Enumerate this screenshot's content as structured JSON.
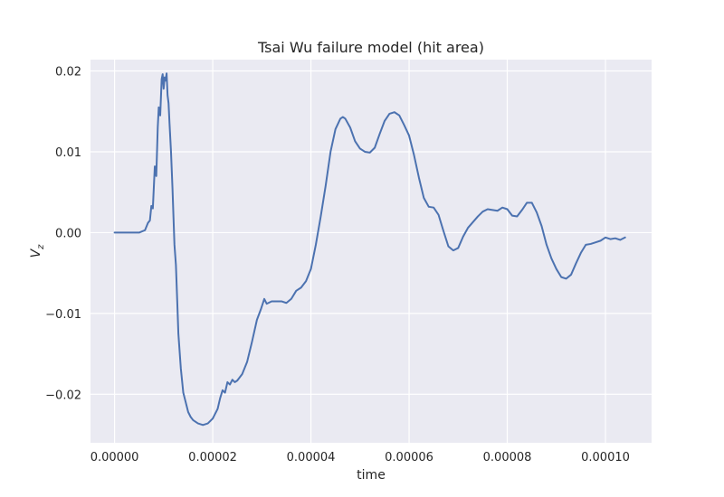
{
  "chart_data": {
    "type": "line",
    "title": "Tsai Wu failure model (hit area)",
    "xlabel": "time",
    "ylabel": "V",
    "ylabel_subscript": "z",
    "xlim": [
      -4.9e-06,
      0.0001094
    ],
    "ylim": [
      -0.026,
      0.0214
    ],
    "xticks": [
      0.0,
      2e-05,
      4e-05,
      6e-05,
      8e-05,
      0.0001
    ],
    "xtick_labels": [
      "0.00000",
      "0.00002",
      "0.00004",
      "0.00006",
      "0.00008",
      "0.00010"
    ],
    "yticks": [
      0.02,
      0.01,
      0.0,
      -0.01,
      -0.02
    ],
    "ytick_labels": [
      "0.02",
      "0.01",
      "0.00",
      "−0.01",
      "−0.02"
    ],
    "grid": true,
    "colors": {
      "line": "#4c72b0",
      "axes_bg": "#eaeaf2",
      "grid": "#ffffff",
      "text": "#262626"
    },
    "series": [
      {
        "name": "Vz",
        "x": [
          0.0,
          2e-06,
          4e-06,
          5e-06,
          6.2e-06,
          6.8e-06,
          7.2e-06,
          7.5e-06,
          7.8e-06,
          8.2e-06,
          8.5e-06,
          8.8e-06,
          9e-06,
          9.3e-06,
          9.6e-06,
          9.8e-06,
          1e-05,
          1.02e-05,
          1.04e-05,
          1.06e-05,
          1.08e-05,
          1.1e-05,
          1.12e-05,
          1.15e-05,
          1.18e-05,
          1.22e-05,
          1.25e-05,
          1.28e-05,
          1.3e-05,
          1.35e-05,
          1.4e-05,
          1.45e-05,
          1.5e-05,
          1.55e-05,
          1.6e-05,
          1.7e-05,
          1.8e-05,
          1.9e-05,
          2e-05,
          2.1e-05,
          2.15e-05,
          2.2e-05,
          2.25e-05,
          2.3e-05,
          2.35e-05,
          2.4e-05,
          2.45e-05,
          2.5e-05,
          2.6e-05,
          2.7e-05,
          2.8e-05,
          2.9e-05,
          2.98e-05,
          3.05e-05,
          3.1e-05,
          3.2e-05,
          3.3e-05,
          3.4e-05,
          3.5e-05,
          3.6e-05,
          3.7e-05,
          3.8e-05,
          3.9e-05,
          4e-05,
          4.1e-05,
          4.2e-05,
          4.3e-05,
          4.4e-05,
          4.5e-05,
          4.6e-05,
          4.65e-05,
          4.7e-05,
          4.8e-05,
          4.9e-05,
          5e-05,
          5.1e-05,
          5.2e-05,
          5.3e-05,
          5.4e-05,
          5.5e-05,
          5.6e-05,
          5.7e-05,
          5.8e-05,
          5.9e-05,
          6e-05,
          6.1e-05,
          6.2e-05,
          6.3e-05,
          6.4e-05,
          6.5e-05,
          6.6e-05,
          6.7e-05,
          6.8e-05,
          6.9e-05,
          7e-05,
          7.1e-05,
          7.2e-05,
          7.3e-05,
          7.4e-05,
          7.5e-05,
          7.6e-05,
          7.7e-05,
          7.8e-05,
          7.9e-05,
          8e-05,
          8.1e-05,
          8.2e-05,
          8.3e-05,
          8.4e-05,
          8.5e-05,
          8.6e-05,
          8.7e-05,
          8.8e-05,
          8.9e-05,
          9e-05,
          9.1e-05,
          9.2e-05,
          9.3e-05,
          9.4e-05,
          9.5e-05,
          9.6e-05,
          9.7e-05,
          9.8e-05,
          9.9e-05,
          0.0001,
          0.000101,
          0.000102,
          0.000103,
          0.000104
        ],
        "y": [
          0.0,
          0.0,
          0.0,
          0.0,
          0.0003,
          0.0012,
          0.0015,
          0.0033,
          0.003,
          0.0082,
          0.007,
          0.013,
          0.0155,
          0.0145,
          0.019,
          0.0196,
          0.0178,
          0.0192,
          0.0188,
          0.0197,
          0.017,
          0.016,
          0.0135,
          0.01,
          0.0055,
          -0.0015,
          -0.004,
          -0.009,
          -0.0125,
          -0.0168,
          -0.0198,
          -0.021,
          -0.0222,
          -0.0228,
          -0.0232,
          -0.0236,
          -0.0238,
          -0.0236,
          -0.023,
          -0.0218,
          -0.0205,
          -0.0195,
          -0.0198,
          -0.0185,
          -0.0188,
          -0.0182,
          -0.0185,
          -0.0183,
          -0.0175,
          -0.016,
          -0.0135,
          -0.0108,
          -0.0095,
          -0.0082,
          -0.0088,
          -0.0085,
          -0.0085,
          -0.0085,
          -0.0087,
          -0.0082,
          -0.0072,
          -0.0068,
          -0.006,
          -0.0045,
          -0.0015,
          0.002,
          0.0058,
          0.01,
          0.0128,
          0.0141,
          0.0143,
          0.0141,
          0.013,
          0.0113,
          0.0104,
          0.01,
          0.0099,
          0.0105,
          0.0122,
          0.0138,
          0.0147,
          0.0149,
          0.0145,
          0.0133,
          0.012,
          0.0096,
          0.0068,
          0.0043,
          0.0032,
          0.0031,
          0.0022,
          0.0002,
          -0.0017,
          -0.0022,
          -0.0019,
          -0.0005,
          0.0006,
          0.0013,
          0.002,
          0.0026,
          0.0029,
          0.0028,
          0.0027,
          0.0031,
          0.0029,
          0.0021,
          0.002,
          0.0028,
          0.0037,
          0.0037,
          0.0025,
          0.0008,
          -0.0015,
          -0.0032,
          -0.0045,
          -0.0055,
          -0.0057,
          -0.0052,
          -0.0038,
          -0.0025,
          -0.0015,
          -0.0014,
          -0.0012,
          -0.001,
          -0.0006,
          -0.0008,
          -0.0007,
          -0.0009,
          -0.0006
        ]
      }
    ]
  }
}
